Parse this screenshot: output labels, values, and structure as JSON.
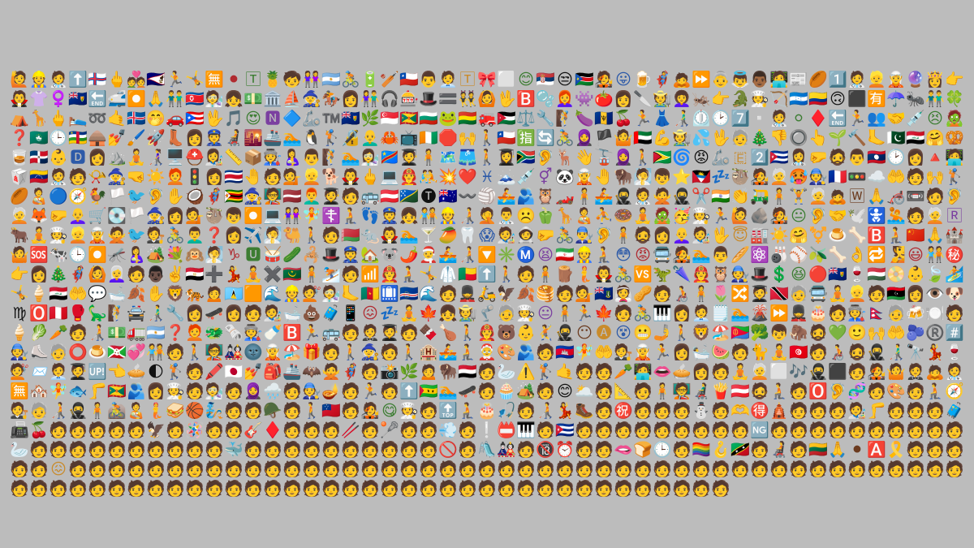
{
  "mosaic": {
    "label": "Emoji mosaic",
    "columns": 49,
    "rows": 24,
    "glyphs": [
      "🙋",
      "👷",
      "🧑‍⚕️",
      "⬆️",
      "🇫🇴",
      "🖕",
      "💑",
      "🇦🇸",
      "🏃",
      "🤸",
      "🈚",
      "⚫",
      "🅃",
      "🍍",
      "🧒",
      "👭",
      "🇦🇷",
      "🚴",
      "🔋",
      "🏏",
      "🇨🇱",
      "👨",
      "🧑‍💼",
      "🅃",
      "🎀",
      "⬜",
      "😊",
      "🇷🇸",
      "😒",
      "🇸🇸",
      "🧑‍🎤",
      "😛",
      "🍺",
      "🦸",
      "🙇",
      "⏩",
      "👵",
      "👼",
      "👨🏾",
      "🧑‍💻",
      "📰",
      "🏉",
      "1️⃣",
      "🧑‍⚕️",
      "👱",
      "🧝",
      "🔮",
      "👸",
      "👉",
      "🧛",
      "👚",
      "♀️",
      "🇹🇨",
      "🔚",
      "🚅",
      "⏺️",
      "🙏",
      "👬",
      "🇰🇵",
      "🧑‍🔬",
      "👧",
      "💵",
      "🏛️",
      "⛵",
      "🧙",
      "🏇",
      "👩",
      "👫",
      "🎧",
      "🎰",
      "🎩",
      "🟰",
      "👯",
      "🙆",
      "🖖",
      "🅱️",
      "🫧",
      "👩‍🦰",
      "👾",
      "🍅",
      "👩",
      "🔪",
      "🧑‍🌾",
      "👩‍🦱",
      "🦗",
      "👉",
      "🐊",
      "🧑‍🍳",
      "🏹",
      "🇭🇳",
      "🇨🇴",
      "🙃",
      "⬛",
      "🈶",
      "☂️",
      "🐜",
      "👬",
      "🍀",
      "⛺",
      "🦒",
      "🖕",
      "🛌",
      "➿",
      "🤙",
      "🇮🇸",
      "🤭",
      "🚗",
      "🇵🇷",
      "🖖",
      "🎵",
      "😍",
      "🅽",
      "🔷",
      "🦾",
      "™️",
      "🇹🇨",
      "🌿",
      "🇸🇬",
      "🇬🇩",
      "🇧🇬",
      "🐸",
      "🇧🇴",
      "🚒",
      "🇯🇴",
      "⚖️",
      "🔧",
      "🧗",
      "🍆",
      "🇧🇧",
      "🍒",
      "🏃",
      "👗",
      "👨‍🦯",
      "⏲️",
      "🕑",
      "7️⃣",
      "▫️",
      "🧑‍⚕️",
      "⚪",
      "♦️",
      "🔚",
      "🏃",
      "👥",
      "🤝",
      "💉",
      "😣",
      "🧟",
      "❓",
      "🇲🇴",
      "🕒",
      "🇨🇫",
      "🛖",
      "💅",
      "🖌️",
      "🚀",
      "👢",
      "👩",
      "👮",
      "🧑‍🦼",
      "🌇",
      "🚢",
      "🏊",
      "🐧",
      "🏌️",
      "🔏",
      "👨‍🦲",
      "🦀",
      "📺",
      "🇨🇮",
      "🛑",
      "🙌",
      "🚶",
      "🇨🇱",
      "🈯",
      "🔄",
      "🚴",
      "🧕",
      "🏴",
      "🤷",
      "🇦🇪",
      "💪",
      "🧑‍🌾",
      "💦",
      "🖖",
      "🧓",
      "🎄",
      "👎",
      "🔘",
      "👆",
      "🌱",
      "🔨",
      "🦶",
      "🇵🇰",
      "🇮🇶",
      "🤗",
      "🥨",
      "🥃",
      "🇩🇴",
      "👶",
      "🅳",
      "👩",
      "⛰️",
      "🧘",
      "👩‍🦯",
      "🖥️",
      "⛑️",
      "👩‍🎨",
      "📏",
      "📦",
      "🧑‍🏭",
      "🤱",
      "👨",
      "🧗",
      "🏊",
      "👩‍🔬",
      "🇨🇩",
      "🧑‍🎓",
      "🧍",
      "🗺️",
      "🩳",
      "🚶",
      "👩‍🎓",
      "🇿🇦",
      "🦻",
      "🦌",
      "👋",
      "🚡",
      "🧕",
      "🚶",
      "🇬🇾",
      "🌀",
      "😡",
      "🦾",
      "🇪",
      "2️⃣",
      "🇨🇺",
      "👩‍⚕️",
      "🤛",
      "🧔",
      "👨",
      "🇱🇦",
      "🕑",
      "👩",
      "🔺",
      "🧑‍💻",
      "🥡",
      "🇻🇪",
      "🧑‍⚕️",
      "🧑",
      "📯",
      "🧙",
      "🤜",
      "☀️",
      "🧑‍🦰",
      "🚦",
      "👩",
      "🇨🇷",
      "🤚",
      "🧑",
      "💁",
      "👱",
      "🐕",
      "🧛",
      "🖕",
      "💻",
      "👨‍🚒",
      "🤼",
      "💥",
      "❤️",
      "♓",
      "🗻",
      "💉",
      "⚥",
      "🐼",
      "🧝",
      "🤚",
      "🦬",
      "🧖",
      "👦",
      "⭐",
      "🇦🇬",
      "💤",
      "🦥",
      "🧑‍🎤",
      "🧑‍🦳",
      "🥵",
      "🧑‍🔧",
      "🇫🇷",
      "🚥",
      "☁️",
      "🤲",
      "🧑",
      "🙌",
      "🏌️",
      "🏉",
      "🧑‍🍼",
      "🔵",
      "🧭",
      "🐓",
      "🏳️",
      "🐦",
      "🦻",
      "✋",
      "🥥",
      "🦸",
      "🇿🇼",
      "🧙",
      "🧑‍🏫",
      "🇱🇻",
      "👨‍🦰",
      "🧑‍🎓",
      "🧑",
      "🚌",
      "🇦🇹",
      "🇸🇧",
      "🅣",
      "🇦🇺",
      "〰️",
      "🏐",
      "🚣",
      "🫂",
      "🦉",
      "🏎️",
      "🧍",
      "🚣",
      "🥷",
      "🧑‍⚕️",
      "🙅",
      "🥷",
      "✂️",
      "🇮🇳",
      "👏",
      "🛺",
      "🧍",
      "🏋️",
      "🧑‍🦳",
      "🙇",
      "🅆",
      "🙏",
      "🦽",
      "📼",
      "🧑",
      "🦻",
      "🧑‍🦳",
      "🦊",
      "🤛",
      "👩‍🦲",
      "🛒",
      "💽",
      "🏳️",
      "🧙",
      "👩",
      "💁",
      "🦥",
      "👦",
      "⏺️",
      "💻",
      "👭",
      "🧚",
      "☦️",
      "🧎",
      "👣",
      "👮",
      "👧",
      "🧑‍🤝‍🧑",
      "👷",
      "🧑‍🦯",
      "🤦",
      "👨‍⚕️",
      "☹️",
      "🫑",
      "🦒",
      "🧑‍🍼",
      "⛹️",
      "🍩",
      "🧘",
      "🧟",
      "🥳",
      "🧑‍🍳",
      "🏃",
      "🙋",
      "🪨",
      "🧑‍🎤",
      "😐",
      "🦻",
      "🤝",
      "🕊️",
      "🚼",
      "🤽",
      "🧑",
      "🧑‍🦳",
      "🅁",
      "🐂",
      "🧘",
      "🧑‍🍳",
      "👱",
      "🧝",
      "🙅",
      "🐦",
      "🧑‍⚖️",
      "🚴",
      "👨‍🦱",
      "❓",
      "👩",
      "✈️",
      "🧖",
      "🐫",
      "🚶",
      "🧑",
      "🇧🇾",
      "🐀",
      "🧛",
      "🏊",
      "🍸",
      "🥭",
      "🦷",
      "😱",
      "🧑‍🎨",
      "🧑‍🚀",
      "🤛",
      "🚴",
      "👨‍🔧",
      "🦻",
      "🧍",
      "🧔",
      "👩",
      "👩‍🦲",
      "🧑‍🎨",
      "🖖",
      "😇",
      "🏭",
      "☀️",
      "🤗",
      "⚧️",
      "🍮",
      "🦴",
      "🅱️",
      "🧎",
      "🇨🇳",
      "🙏",
      "🏰",
      "🤷",
      "🆘",
      "🐄",
      "🕒",
      "⏺️",
      "🦟",
      "🤱",
      "🏕️",
      "💐",
      "🙉",
      "🧖",
      "♑",
      "🆄",
      "🥁",
      "🥒",
      "🦂",
      "🎩",
      "👮",
      "🏡",
      "🐨",
      "🌶️",
      "🧑‍🎄",
      "🚣",
      "🧑‍🦯",
      "🔽",
      "✳️",
      "Ⓜ️",
      "😫",
      "🇮🇷",
      "👷",
      "🧎",
      "😳",
      "😡",
      "🚍",
      "🧑‍🎤",
      "🏊",
      "👨",
      "🥖",
      "⚛️",
      "🎳",
      "⚾",
      "🫒",
      "🦴",
      "👌",
      "🔁",
      "🧏",
      "😃",
      "🧑‍🤝‍🧑",
      "㊙️",
      "👉",
      "👩",
      "🎄",
      "🦸",
      "🙆",
      "👩‍🦳",
      "🧑",
      "👨🏿",
      "✌️",
      "🇪🇬",
      "➕",
      "💃",
      "🧘",
      "✖️",
      "🇲🇷",
      "🧍",
      "⛷️",
      "🧑",
      "📶",
      "🧑‍🚒",
      "🧎",
      "🤸",
      "🥼",
      "🇧🇯",
      "⬆️",
      "🚶",
      "🧑",
      "🧍",
      "🪵",
      "🧜",
      "🧛",
      "🚴",
      "🆚",
      "🦖",
      "🌂",
      "🧑‍🚒",
      "🦉",
      "🧑‍🔧",
      "🎩",
      "💲",
      "😆",
      "🔴",
      "🇹🇨",
      "🍷",
      "🇭🇺",
      "📀",
      "👶",
      "🍃",
      "🏄",
      "🤸",
      "🍦",
      "🇮🇶",
      "🤲",
      "💬",
      "🛁",
      "🍂",
      "✋",
      "🦁",
      "🐅",
      "🙍",
      "🇱🇨",
      "🟧",
      "🌊",
      "👷",
      "💇",
      "🧑‍🔬",
      "🦶",
      "🇨🇲",
      "🛄",
      "🇨🇻",
      "🌊",
      "🧑",
      "💂",
      "🛵",
      "🦅",
      "🍂",
      "🥞",
      "🧑",
      "💁",
      "🇻🇬",
      "👰",
      "🥜",
      "🧑",
      "🧑‍🦽",
      "🧍",
      "🌷",
      "🔀",
      "🧑‍🎓",
      "🇹🇹",
      "🧓",
      "🚍",
      "🧘",
      "👱",
      "🧑",
      "🇱🇾",
      "👩",
      "👁️",
      "🐶",
      "♍",
      "🅾️",
      "🇵🇪",
      "🥊",
      "🦕",
      "🧗",
      "🚔",
      "👨‍🦯",
      "🔧",
      "👩",
      "🛹",
      "👩",
      "🧑",
      "🧑‍🎨",
      "🛁",
      "💩",
      "🧳",
      "📱",
      "😖",
      "💤",
      "🧘",
      "🍁",
      "👧",
      "🧑‍🌾",
      "🦿",
      "🧓",
      "🧑‍🍳",
      "😐",
      "🧍",
      "🏃",
      "🍁",
      "🧑",
      "🚴",
      "🎹",
      "👩",
      "🧑‍💼",
      "🗒️",
      "🏊",
      "🌋",
      "⏩",
      "💂",
      "🎂",
      "🧑",
      "🧑‍🏭",
      "🇳🇵",
      "🧓",
      "🍻",
      "🍽️",
      "🧑",
      "🍦",
      "🥬",
      "🥕",
      "🧑",
      "🧑‍🦯",
      "💵",
      "🚛",
      "🇦🇷",
      "❓",
      "🧑‍🦰",
      "🐲",
      "🗞️",
      "🧑‍🏭",
      "🍼",
      "🅱️",
      "🏃",
      "🚌",
      "🧑",
      "🤵",
      "🧑‍🎓",
      "🧑",
      "🍫",
      "🍗",
      "🚶",
      "🧑‍🚒",
      "🐻",
      "👶",
      "🤾",
      "🥷",
      "😶",
      "🅐",
      "😵",
      "😬",
      "🤳",
      "🚶",
      "🦁",
      "🏖️",
      "🇪🇷",
      "🥦",
      "👦",
      "🦣",
      "🧔",
      "💚",
      "🙂",
      "🙌",
      "🤲",
      "🫐",
      "®️",
      "#️⃣",
      "🧑‍🔧",
      "⛸️",
      "🧓",
      "⭕",
      "🍮",
      "🇧🇮",
      "💞",
      "🧑‍🤝‍🧑",
      "🧑",
      "🚶",
      "🧑‍🏫",
      "🎎",
      "🌚",
      "🧝",
      "🏖️",
      "🎁",
      "🧑",
      "🚶",
      "🧙",
      "🧑",
      "🚶",
      "🏨",
      "🚣",
      "🧎",
      "🤶",
      "🎨",
      "🫂",
      "🧑",
      "🇰🇭",
      "🧚",
      "🤲",
      "🧑‍⚖️",
      "🧝",
      "🏃",
      "👩",
      "🛀",
      "🍉",
      "🧑",
      "🐈",
      "🧘",
      "🇹🇳",
      "🧑",
      "🧑‍🦽",
      "🧔",
      "🥷",
      "👨‍🦯",
      "🔭",
      "💃",
      "🍷",
      "💇",
      "📨",
      "🧑‍💼",
      "🧑‍🎓",
      "🆙",
      "👈",
      "🥧",
      "🌓",
      "🏌️",
      "🧑",
      "🖍️",
      "🇯🇵",
      "💅",
      "🎒",
      "🚢",
      "🦇",
      "🙅",
      "🦸",
      "🧑",
      "📸",
      "🌿",
      "🙍",
      "🦬",
      "🇾🇪",
      "🧑",
      "🦢",
      "⚠️",
      "🏌️",
      "🤙",
      "🧑",
      "🧑",
      "🥕",
      "🧑‍💻",
      "👄",
      "🥧",
      "👩",
      "🧑",
      "🧘",
      "🧑‍🦳",
      "⬜",
      "🎶",
      "🥷",
      "⬛",
      "🧑",
      "🧑‍🎤",
      "🤷",
      "🤵",
      "🙇",
      "🧑‍⚕️",
      "🈚",
      "🏘️",
      "🧚",
      "🐟",
      "🦵",
      "🇬🇩",
      "🫂",
      "👩",
      "🧑‍🍳",
      "🧑",
      "🧑‍🔬",
      "🧑",
      "🧕",
      "🌧️",
      "🧑",
      "🧑‍🔧",
      "🪔",
      "🧑",
      "🏃",
      "🧑",
      "⬆️",
      "🇸🇹",
      "🏊",
      "🛹",
      "🧑",
      "🧁",
      "🏕️",
      "🧑",
      "😊",
      "🌥️",
      "🧑",
      "📐",
      "🧑",
      "🧍",
      "🧑‍🏫",
      "👨‍🦼",
      "🍟",
      "🇦🇹",
      "🧔",
      "🧎",
      "🧑",
      "🅾️",
      "🦻",
      "🧬",
      "🧑",
      "🎨",
      "🧑",
      "🧎",
      "🧭",
      "🧑‍⚖️",
      "🧓",
      "🧑‍🦯",
      "🥷",
      "🧍",
      "🚵",
      "🧑‍🍼",
      "🧜",
      "🥪",
      "🏀",
      "🧞",
      "🧑",
      "🧑",
      "🪖",
      "🧑",
      "🚶",
      "🇼🇸",
      "🧑",
      "🧑‍🎤",
      "😋",
      "🧑‍🍳",
      "🧑",
      "🔝",
      "🧎",
      "🎂",
      "🎣",
      "🧑",
      "🧑‍🦯",
      "💃",
      "🥾",
      "🧑",
      "㊗️",
      "🧑",
      "🧑",
      "🧑",
      "⛄",
      "🧑",
      "🫶",
      "🉐",
      "🛕",
      "🧑",
      "🧑",
      "🧑",
      "🧑‍🎨",
      "🦵",
      "🧑",
      "🧑",
      "🧑",
      "🧳",
      "📠",
      "🍒",
      "🧑",
      "🧑",
      "🧑",
      "🧑",
      "🧑",
      "🦅",
      "🧑",
      "🪅",
      "🧑",
      "🧑",
      "🎸",
      "♦️",
      "🧑",
      "🧑",
      "🧑",
      "🥢",
      "🧑",
      "🥍",
      "🧑",
      "🧑",
      "💨",
      "🧑",
      "❕",
      "📛",
      "🎹",
      "🧑",
      "🇨🇺",
      "🧑",
      "🧑",
      "🧑",
      "🧑",
      "🧑",
      "🧑",
      "🧑",
      "🧑",
      "🧑",
      "🆖",
      "🧑",
      "🧑",
      "🧑",
      "🧑",
      "🧑",
      "🧑",
      "🧑",
      "🧑",
      "🧑",
      "🧑",
      "🦢",
      "🧑",
      "🧑",
      "🧑",
      "🧑",
      "🧑",
      "🧑",
      "🧑",
      "🧑",
      "🧑",
      "🧑",
      "🐳",
      "🧑",
      "🧑",
      "🧑",
      "🧑",
      "🧑",
      "🧑",
      "🧑",
      "🧑",
      "🧑",
      "🧑",
      "🚫",
      "🧑",
      "🛝",
      "🎎",
      "🧑",
      "🔞",
      "⏰",
      "🧑",
      "🧑",
      "🫦",
      "🍞",
      "🕒",
      "🧑",
      "🏳️‍🌈",
      "🪝",
      "🇰🇳",
      "🧑",
      "🧑‍🦼",
      "🧑",
      "🇱🇹",
      "🙏",
      "⚫",
      "🅰️",
      "🎗️",
      "🧑",
      "🧑",
      "🧑",
      "🧑",
      "🧑",
      "😖",
      "🧑",
      "🧑",
      "🧑",
      "🧑",
      "🧑",
      "🧑",
      "🧑",
      "🧑",
      "🧑",
      "🧑",
      "🧑",
      "🧑",
      "🧑",
      "🧑",
      "🧑",
      "🧑",
      "🧑",
      "🧑",
      "🧑",
      "🧑",
      "🧑",
      "🧑",
      "🧑",
      "🧑",
      "🧑",
      "🧑",
      "🧑",
      "🧑",
      "🧑",
      "🧑",
      "🧑",
      "🧑",
      "🧑",
      "🧑",
      "🧑",
      "🧑",
      "🧑",
      "🧑",
      "🧑",
      "🧑",
      "🧑",
      "🧑",
      "🧑",
      "🧑",
      "🧑",
      "🧑",
      "🧑",
      "🧑",
      "🧑",
      "🧑",
      "🧑",
      "🧑",
      "🧑",
      "🧑",
      "🧑",
      "🧑",
      "🧑",
      "🧑",
      "🧑",
      "🧑",
      "🧑",
      "🧑",
      "🧑",
      "🧑",
      "🧑",
      "🧑",
      "🧑",
      "🧑",
      "🧑",
      "🧑",
      "🧑",
      "🧑",
      "🧑",
      "🧑",
      "🧑",
      "🧑",
      "🧑",
      "🧑",
      "🧑",
      "🧑",
      "🧑",
      "🧑",
      "🧑"
    ]
  }
}
